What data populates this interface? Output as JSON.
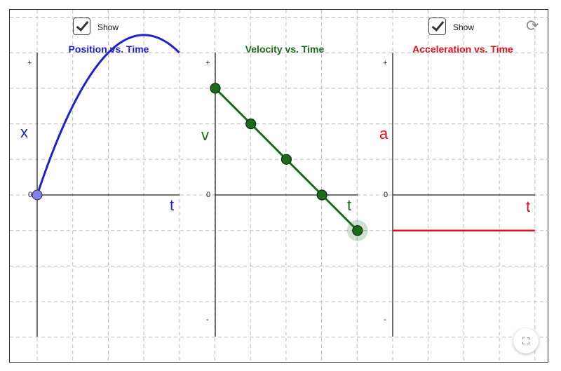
{
  "checkboxes": [
    {
      "label": "Show",
      "checked": true
    },
    {
      "label": "Show",
      "checked": true
    }
  ],
  "panels": [
    {
      "title": "Position vs. Time",
      "ylabel": "x",
      "xlabel": "t",
      "color": "#2020d0",
      "plus": "+",
      "zero": "0"
    },
    {
      "title": "Velocity vs. Time",
      "ylabel": "v",
      "xlabel": "t",
      "color": "#1a6b1a",
      "plus": "+",
      "zero": "0",
      "minus": "-"
    },
    {
      "title": "Acceleration vs. Time",
      "ylabel": "a",
      "xlabel": "t",
      "color": "#e0101e",
      "plus": "+",
      "zero": "0",
      "minus": "-"
    }
  ],
  "icons": {
    "reset": "reset-icon",
    "fullscreen": "fullscreen-icon"
  },
  "chart_data": [
    {
      "type": "line",
      "title": "Position vs. Time",
      "xlabel": "t",
      "ylabel": "x",
      "function": "x = 3t - 0.5t^2",
      "t_range": [
        0,
        4
      ],
      "start_point": [
        0,
        0
      ]
    },
    {
      "type": "line",
      "title": "Velocity vs. Time",
      "xlabel": "t",
      "ylabel": "v",
      "x": [
        0,
        1,
        2,
        3,
        4
      ],
      "values": [
        3,
        2,
        1,
        0,
        -1
      ],
      "highlighted_point": [
        4,
        -1
      ]
    },
    {
      "type": "line",
      "title": "Acceleration vs. Time",
      "xlabel": "t",
      "ylabel": "a",
      "x": [
        0,
        4
      ],
      "values": [
        -1,
        -1
      ]
    }
  ]
}
